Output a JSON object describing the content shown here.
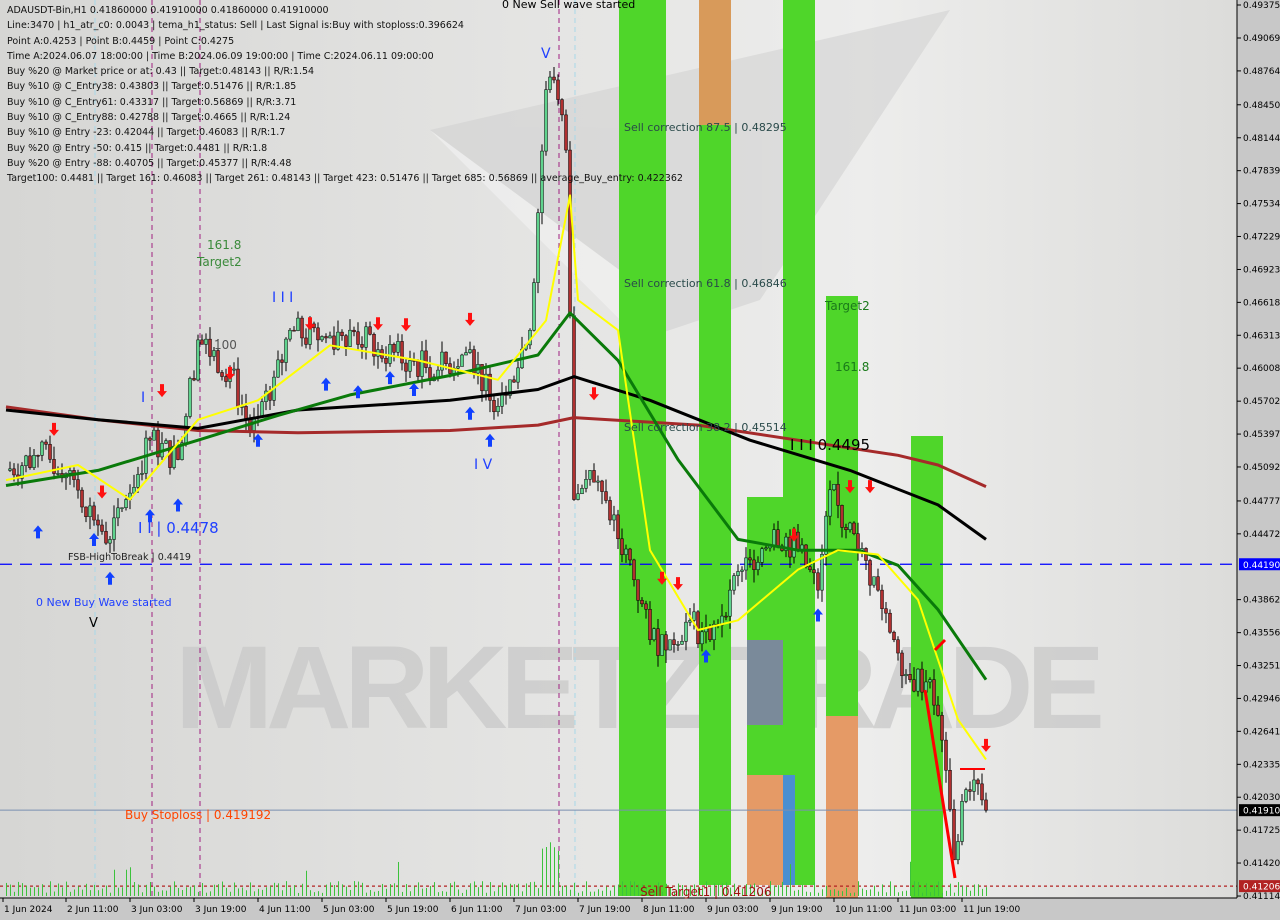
{
  "header": {
    "lines": [
      "ADAUSDT-Bin,H1  0.41860000 0.41910000 0.41860000 0.41910000",
      "Line:3470 | h1_atr_c0: 0.0043 | tema_h1_status: Sell | Last Signal is:Buy with stoploss:0.396624",
      "Point A:0.4253 | Point B:0.4459 | Point C:0.4275",
      "Time A:2024.06.07 18:00:00 | Time B:2024.06.09 19:00:00 | Time C:2024.06.11 09:00:00",
      "Buy %20 @ Market price or at: 0.43 || Target:0.48143 || R/R:1.54",
      "Buy %10 @ C_Entry38: 0.43803 || Target:0.51476 || R/R:1.85",
      "Buy %10 @ C_Entry61: 0.43317 || Target:0.56869 || R/R:3.71",
      "Buy %10 @ C_Entry88: 0.42788 || Target:0.4665 || R/R:1.24",
      "Buy %10 @ Entry -23: 0.42044 || Target:0.46083 || R/R:1.7",
      "Buy %20 @ Entry -50: 0.415 || Target:0.4481 || R/R:1.8",
      "Buy %20 @ Entry -88: 0.40705 || Target:0.45377 || R/R:4.48",
      "Target100: 0.4481 || Target 161: 0.46083 || Target 261: 0.48143 || Target 423: 0.51476 || Target 685: 0.56869 || average_Buy_entry: 0.422362"
    ]
  },
  "annotations": {
    "sell_wave": "0 New Sell wave started",
    "fib_1618_left": "161.8",
    "target2_left": "Target2",
    "fib_100": "100",
    "wave_iii_left": "I I I",
    "wave_i": "I",
    "wave_iv": "I V",
    "wave_ii_level": "I I | 0.4478",
    "fsb": "FSB-HighToBreak | 0.4419",
    "buy_wave": "0 New Buy Wave started",
    "v_bottom": "V",
    "v_top": "V",
    "sell_corr_875": "Sell correction 87.5 | 0.48295",
    "sell_corr_618": "Sell correction 61.8 | 0.46846",
    "sell_corr_382": "Sell correction 38.2 | 0.45514",
    "target2_right": "Target2",
    "fib_1618_right": "161.8",
    "wave_iii_right": "I I I 0.4495",
    "buy_stoploss": "Buy Stoploss | 0.419192",
    "sell_target1": "Sell Target1 | 0.41206",
    "watermark": "MARKETZITRADE"
  },
  "colors": {
    "plot_bg": "#dddcda",
    "bull": "#5fd38d",
    "bear": "#b03030",
    "ma_yellow": "#ffff00",
    "ma_green": "#0a7a0a",
    "ma_black": "#000000",
    "ma_brown": "#a52a2a",
    "zone_green": "#4fd62a",
    "zone_orange": "#e59a66",
    "zone_blue": "#4a8fd0",
    "level_blue": "#0000ff",
    "level_red": "#b22222"
  },
  "chart_data": {
    "type": "candlestick",
    "symbol": "ADAUSDT-Bin,H1",
    "ylim": [
      0.41114,
      0.49375
    ],
    "y_ticks": [
      "0.49375",
      "0.49069",
      "0.48764",
      "0.48450",
      "0.48144",
      "0.47839",
      "0.47534",
      "0.47229",
      "0.46923",
      "0.46618",
      "0.46313",
      "0.46008",
      "0.45702",
      "0.45397",
      "0.45092",
      "0.44777",
      "0.44472",
      "0.43862",
      "0.43556",
      "0.43251",
      "0.42946",
      "0.42641",
      "0.42335",
      "0.42030",
      "0.41725",
      "0.41420",
      "0.41114"
    ],
    "price_tags": [
      {
        "value": "0.44190",
        "color": "#0000ff"
      },
      {
        "value": "0.41910",
        "color": "#000000"
      },
      {
        "value": "0.41206",
        "color": "#b22222"
      }
    ],
    "x_ticks": [
      "1 Jun 2024",
      "2 Jun 11:00",
      "3 Jun 03:00",
      "3 Jun 19:00",
      "4 Jun 11:00",
      "5 Jun 03:00",
      "5 Jun 19:00",
      "6 Jun 11:00",
      "7 Jun 03:00",
      "7 Jun 19:00",
      "8 Jun 11:00",
      "9 Jun 03:00",
      "9 Jun 19:00",
      "10 Jun 11:00",
      "11 Jun 03:00",
      "11 Jun 19:00"
    ],
    "close_approx": [
      [
        "06-01 20:00",
        0.4506
      ],
      [
        "06-02 04:00",
        0.452
      ],
      [
        "06-02 12:00",
        0.4506
      ],
      [
        "06-02 18:00",
        0.446
      ],
      [
        "06-02 22:00",
        0.4442
      ],
      [
        "06-03 02:00",
        0.4479
      ],
      [
        "06-03 08:00",
        0.4534
      ],
      [
        "06-03 15:00",
        0.4516
      ],
      [
        "06-03 20:00",
        0.4627
      ],
      [
        "06-04 04:00",
        0.4599
      ],
      [
        "06-04 09:00",
        0.4543
      ],
      [
        "06-04 14:00",
        0.4571
      ],
      [
        "06-04 19:00",
        0.4636
      ],
      [
        "06-05 02:00",
        0.4627
      ],
      [
        "06-05 10:00",
        0.4636
      ],
      [
        "06-05 17:00",
        0.4618
      ],
      [
        "06-06 01:00",
        0.4608
      ],
      [
        "06-06 08:00",
        0.4599
      ],
      [
        "06-06 16:00",
        0.4618
      ],
      [
        "06-06 21:00",
        0.4571
      ],
      [
        "06-07 02:00",
        0.459
      ],
      [
        "06-07 07:00",
        0.4636
      ],
      [
        "06-07 11:00",
        0.4859
      ],
      [
        "06-07 13:00",
        0.4868
      ],
      [
        "06-07 16:00",
        0.4803
      ],
      [
        "06-07 18:00",
        0.4479
      ],
      [
        "06-07 22:00",
        0.4506
      ],
      [
        "06-08 03:00",
        0.446
      ],
      [
        "06-08 08:00",
        0.4423
      ],
      [
        "06-08 13:00",
        0.4349
      ],
      [
        "06-08 18:00",
        0.4349
      ],
      [
        "06-08 23:00",
        0.4367
      ],
      [
        "06-09 04:00",
        0.4349
      ],
      [
        "06-09 09:00",
        0.4395
      ],
      [
        "06-09 14:00",
        0.4423
      ],
      [
        "06-09 20:00",
        0.4451
      ],
      [
        "06-10 02:00",
        0.4432
      ],
      [
        "06-10 07:00",
        0.4395
      ],
      [
        "06-10 10:00",
        0.4488
      ],
      [
        "06-10 14:00",
        0.4451
      ],
      [
        "06-10 17:00",
        0.4432
      ],
      [
        "06-10 22:00",
        0.4395
      ],
      [
        "06-11 02:00",
        0.4349
      ],
      [
        "06-11 06:00",
        0.4312
      ],
      [
        "06-11 11:00",
        0.4312
      ],
      [
        "06-11 15:00",
        0.4228
      ],
      [
        "06-11 17:00",
        0.4145
      ],
      [
        "06-11 20:00",
        0.421
      ],
      [
        "06-11 22:00",
        0.4219
      ],
      [
        "06-12 01:00",
        0.4191
      ]
    ],
    "series": [
      {
        "color": "#a52a2a",
        "points": [
          [
            "06-01 20:00",
            0.4565
          ],
          [
            "06-02 19:00",
            0.4553
          ],
          [
            "06-03 20:00",
            0.4543
          ],
          [
            "06-04 21:00",
            0.4541
          ],
          [
            "06-06 11:00",
            0.4543
          ],
          [
            "06-07 09:00",
            0.4548
          ],
          [
            "06-07 18:00",
            0.4555
          ],
          [
            "06-09 01:00",
            0.4548
          ],
          [
            "06-10 02:00",
            0.4534
          ],
          [
            "06-11 03:00",
            0.452
          ],
          [
            "06-11 13:00",
            0.4511
          ],
          [
            "06-12 01:00",
            0.4491
          ]
        ]
      },
      {
        "color": "#000000",
        "points": [
          [
            "06-01 20:00",
            0.4562
          ],
          [
            "06-02 19:00",
            0.4553
          ],
          [
            "06-03 20:00",
            0.4545
          ],
          [
            "06-04 21:00",
            0.4562
          ],
          [
            "06-06 11:00",
            0.4571
          ],
          [
            "06-07 09:00",
            0.4581
          ],
          [
            "06-07 18:00",
            0.4593
          ],
          [
            "06-08 13:00",
            0.4571
          ],
          [
            "06-09 14:00",
            0.4534
          ],
          [
            "06-10 15:00",
            0.4506
          ],
          [
            "06-11 13:00",
            0.4474
          ],
          [
            "06-12 01:00",
            0.4442
          ]
        ]
      },
      {
        "color": "#0a7a0a",
        "points": [
          [
            "06-01 20:00",
            0.4492
          ],
          [
            "06-02 19:00",
            0.4506
          ],
          [
            "06-03 20:00",
            0.4534
          ],
          [
            "06-04 16:00",
            0.4557
          ],
          [
            "06-05 10:00",
            0.4576
          ],
          [
            "06-06 11:00",
            0.4594
          ],
          [
            "06-07 09:00",
            0.4613
          ],
          [
            "06-07 17:00",
            0.4652
          ],
          [
            "06-08 05:00",
            0.4608
          ],
          [
            "06-08 20:00",
            0.4516
          ],
          [
            "06-09 11:00",
            0.4442
          ],
          [
            "06-10 02:00",
            0.4432
          ],
          [
            "06-10 17:00",
            0.4432
          ],
          [
            "06-11 03:00",
            0.4418
          ],
          [
            "06-11 13:00",
            0.4377
          ],
          [
            "06-12 01:00",
            0.4312
          ]
        ]
      },
      {
        "color": "#ffff00",
        "points": [
          [
            "06-01 20:00",
            0.4497
          ],
          [
            "06-02 14:00",
            0.4511
          ],
          [
            "06-03 03:00",
            0.4479
          ],
          [
            "06-03 20:00",
            0.4553
          ],
          [
            "06-04 11:00",
            0.4571
          ],
          [
            "06-05 05:00",
            0.4622
          ],
          [
            "06-06 03:00",
            0.4608
          ],
          [
            "06-06 23:00",
            0.459
          ],
          [
            "06-07 11:00",
            0.4645
          ],
          [
            "06-07 17:00",
            0.4761
          ],
          [
            "06-07 19:00",
            0.4664
          ],
          [
            "06-08 05:00",
            0.4636
          ],
          [
            "06-08 13:00",
            0.4432
          ],
          [
            "06-09 01:00",
            0.4358
          ],
          [
            "06-09 11:00",
            0.4367
          ],
          [
            "06-10 02:00",
            0.4414
          ],
          [
            "06-10 12:00",
            0.4432
          ],
          [
            "06-10 22:00",
            0.4428
          ],
          [
            "06-11 08:00",
            0.4386
          ],
          [
            "06-11 18:00",
            0.4275
          ],
          [
            "06-12 01:00",
            0.4238
          ]
        ]
      }
    ],
    "levels": [
      {
        "value": 0.4419,
        "style": "dashed",
        "color": "#0000ff"
      },
      {
        "value": 0.4191,
        "style": "solid",
        "color": "#7a8fb0"
      },
      {
        "value": 0.41206,
        "style": "dotted",
        "color": "#b22222"
      }
    ],
    "signals_buy": [
      [
        "06-02 04:00",
        0.4455
      ],
      [
        "06-02 18:00",
        0.4448
      ],
      [
        "06-02 22:00",
        0.4412
      ],
      [
        "06-03 08:00",
        0.447
      ],
      [
        "06-03 15:00",
        0.448
      ],
      [
        "06-04 11:00",
        0.454
      ],
      [
        "06-05 04:00",
        0.4592
      ],
      [
        "06-05 12:00",
        0.4585
      ],
      [
        "06-05 20:00",
        0.4598
      ],
      [
        "06-06 02:00",
        0.4587
      ],
      [
        "06-06 16:00",
        0.4565
      ],
      [
        "06-06 21:00",
        0.454
      ],
      [
        "06-09 03:00",
        0.434
      ],
      [
        "06-10 07:00",
        0.4378
      ]
    ],
    "signals_sell": [
      [
        "06-02 08:00",
        0.4538
      ],
      [
        "06-02 20:00",
        0.448
      ],
      [
        "06-03 11:00",
        0.4574
      ],
      [
        "06-04 04:00",
        0.459
      ],
      [
        "06-05 00:00",
        0.4636
      ],
      [
        "06-05 17:00",
        0.4636
      ],
      [
        "06-06 00:00",
        0.4635
      ],
      [
        "06-06 16:00",
        0.464
      ],
      [
        "06-07 23:00",
        0.4571
      ],
      [
        "06-08 16:00",
        0.44
      ],
      [
        "06-08 20:00",
        0.4395
      ],
      [
        "06-10 01:00",
        0.444
      ],
      [
        "06-10 15:00",
        0.4485
      ],
      [
        "06-10 20:00",
        0.4485
      ],
      [
        "06-12 01:00",
        0.4245
      ]
    ]
  }
}
